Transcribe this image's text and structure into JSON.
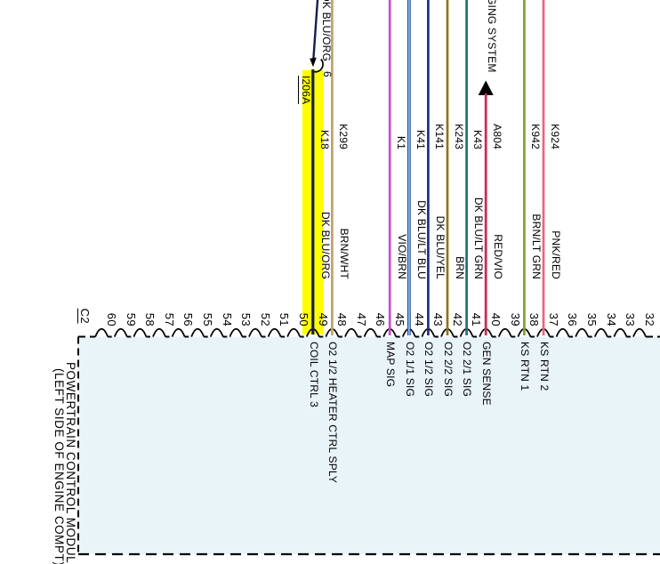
{
  "connector": {
    "label": "C2"
  },
  "module": {
    "name": "POWERTRAIN CONTROL MODULE",
    "location": "(LEFT SIDE OF ENGINE COMPT)"
  },
  "system_link": {
    "visible_text": "GING SYSTEM"
  },
  "splice": {
    "label": "I206A",
    "cavity": "6"
  },
  "highlight": {
    "circuit": "K18",
    "color": "#ffff00"
  },
  "box_fill": "#e9f4f9",
  "pins": [
    "60",
    "59",
    "58",
    "57",
    "56",
    "55",
    "54",
    "53",
    "52",
    "51",
    "50",
    "49",
    "48",
    "47",
    "46",
    "45",
    "44",
    "43",
    "42",
    "41",
    "40",
    "39",
    "38",
    "37",
    "36",
    "35",
    "34",
    "33",
    "32"
  ],
  "wires": [
    {
      "circuit": "K18",
      "color": "DK BLU/ORG",
      "hex": "#161f4e",
      "pin": "49",
      "signal": "COIL CTRL 3",
      "highlighted": true,
      "via_splice": true
    },
    {
      "circuit": "K299",
      "color": "BRN/WHT",
      "hex": "#c2a06b",
      "pin": "48",
      "signal": "O2 1/2 HEATER CTRL SPLY"
    },
    {
      "circuit": "K1",
      "color": "VIO/BRN",
      "hex": "#c84cc8",
      "pin": "45",
      "signal": "MAP SIG"
    },
    {
      "circuit": "K41",
      "color": "DK BLU/LT BLU",
      "hex": "#7db7f0",
      "pin": "44",
      "signal": "O2 1/1 SIG"
    },
    {
      "circuit": "K141",
      "color": "DK BLU/YEL",
      "hex": "#1d2f80",
      "pin": "43",
      "signal": "O2 1/2 SIG"
    },
    {
      "circuit": "K243",
      "color": "BRN",
      "hex": "#8f7418",
      "pin": "42",
      "signal": "O2 2/2 SIG"
    },
    {
      "circuit": "K43",
      "color": "DK BLU/LT GRN",
      "hex": "#1e6f7a",
      "pin": "41",
      "signal": "O2 2/1 SIG"
    },
    {
      "circuit": "A804",
      "color": "RED/VIO",
      "hex": "#ce2a55",
      "pin": "40",
      "signal": "GEN SENSE",
      "arrow_to_system": true
    },
    {
      "circuit": "K942",
      "color": "BRN/LT GRN",
      "hex": "#7aa62c",
      "pin": "38",
      "signal": "KS RTN 1"
    },
    {
      "circuit": "K924",
      "color": "PNK/RED",
      "hex": "#e8657f",
      "pin": "37",
      "signal": "KS RTN 2"
    }
  ]
}
